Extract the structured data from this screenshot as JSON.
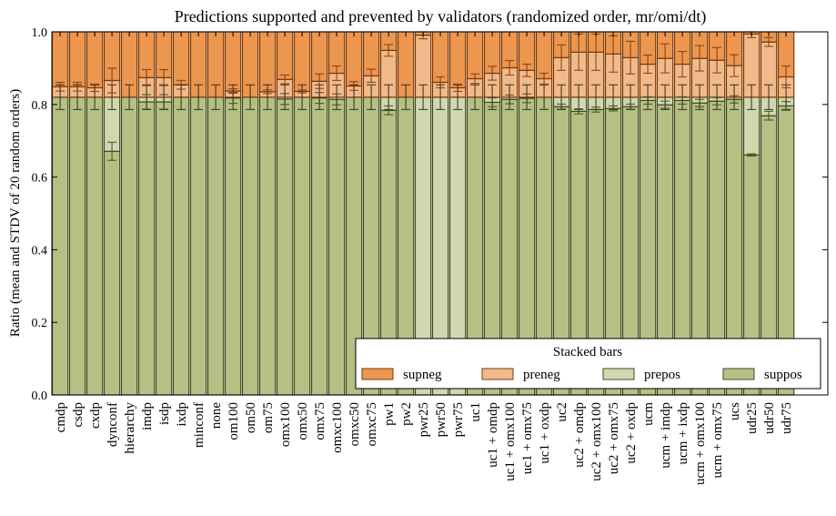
{
  "chart_data": {
    "type": "bar",
    "stacked": true,
    "title": "Predictions supported and prevented by validators (randomized order, mr/omi/dt)",
    "xlabel": "",
    "ylabel": "Ratio (mean and STDV of 20 random orders)",
    "ylim": [
      0,
      1.0
    ],
    "yticks": [
      "0.0",
      "0.2",
      "0.4",
      "0.6",
      "0.8",
      "1.0"
    ],
    "ytick_values": [
      0,
      0.2,
      0.4,
      0.6,
      0.8,
      1.0
    ],
    "grid": false,
    "legend": {
      "title": "Stacked bars",
      "placement": "lower-right",
      "entries": [
        "supneg",
        "preneg",
        "prepos",
        "suppos"
      ]
    },
    "colors": {
      "supneg": "#ec9650",
      "preneg": "#f2b98a",
      "prepos": "#d0d8b0",
      "suppos": "#b4c084",
      "edge_neg": "#7a3a08",
      "edge_pos": "#434a22",
      "err_neg": "#7a3a08",
      "err_pos": "#3c4a20"
    },
    "categories": [
      "cmdp",
      "csdp",
      "cxdp",
      "dynconf",
      "hierarchy",
      "imdp",
      "isdp",
      "ixdp",
      "minconf",
      "none",
      "om100",
      "om50",
      "om75",
      "omx100",
      "omx50",
      "omx75",
      "omxc100",
      "omxc50",
      "omxc75",
      "pw1",
      "pw2",
      "pwr25",
      "pwr50",
      "pwr75",
      "uc1",
      "uc1 + omdp",
      "uc1 + omx100",
      "uc1 + omx75",
      "uc1 + oxdp",
      "uc2",
      "uc2 + omdp",
      "uc2 + omx100",
      "uc2 + omx75",
      "uc2 + oxdp",
      "ucm",
      "ucm + imdp",
      "ucm + ixdp",
      "ucm + omx100",
      "ucm + omx75",
      "ucs",
      "udr25",
      "udr50",
      "udr75"
    ],
    "series": [
      {
        "name": "suppos",
        "values": [
          0.82,
          0.82,
          0.82,
          0.671,
          0.82,
          0.807,
          0.807,
          0.82,
          0.82,
          0.82,
          0.818,
          0.82,
          0.82,
          0.815,
          0.82,
          0.818,
          0.814,
          0.82,
          0.82,
          0.784,
          0.82,
          0,
          0,
          0,
          0.82,
          0.806,
          0.814,
          0.817,
          0.82,
          0.794,
          0.781,
          0.786,
          0.789,
          0.794,
          0.811,
          0.799,
          0.811,
          0.804,
          0.809,
          0.814,
          0.661,
          0.769,
          0.796
        ]
      },
      {
        "name": "prepos",
        "values": [
          0,
          0,
          0,
          0.149,
          0,
          0.013,
          0.013,
          0,
          0,
          0,
          0.002,
          0,
          0,
          0.005,
          0,
          0.002,
          0.006,
          0,
          0,
          0.036,
          0,
          0.82,
          0.82,
          0.82,
          0,
          0.014,
          0.006,
          0.003,
          0,
          0.026,
          0.039,
          0.034,
          0.031,
          0.026,
          0.009,
          0.021,
          0.009,
          0.016,
          0.011,
          0.006,
          0.159,
          0.051,
          0.024
        ]
      },
      {
        "name": "preneg",
        "values": [
          0.029,
          0.029,
          0.026,
          0.046,
          0,
          0.054,
          0.054,
          0.034,
          0,
          0,
          0.017,
          0,
          0.015,
          0.049,
          0.016,
          0.044,
          0.066,
          0.031,
          0.059,
          0.129,
          0,
          0.171,
          0.041,
          0.026,
          0.051,
          0.066,
          0.081,
          0.074,
          0.051,
          0.109,
          0.124,
          0.124,
          0.119,
          0.109,
          0.091,
          0.107,
          0.091,
          0.107,
          0.102,
          0.087,
          0.174,
          0.152,
          0.056
        ]
      },
      {
        "name": "supneg",
        "values": [
          0.151,
          0.151,
          0.154,
          0.134,
          0.18,
          0.126,
          0.126,
          0.146,
          0.18,
          0.18,
          0.163,
          0.18,
          0.165,
          0.131,
          0.164,
          0.136,
          0.114,
          0.149,
          0.121,
          0.051,
          0.18,
          0.009,
          0.139,
          0.154,
          0.129,
          0.114,
          0.099,
          0.106,
          0.129,
          0.071,
          0.056,
          0.056,
          0.061,
          0.071,
          0.089,
          0.073,
          0.089,
          0.073,
          0.078,
          0.093,
          0.006,
          0.028,
          0.124
        ]
      }
    ],
    "stdv": {
      "suppos": [
        0.034,
        0.034,
        0.034,
        0.025,
        0.034,
        0.02,
        0.02,
        0.034,
        0.034,
        0.034,
        0.015,
        0.034,
        0.034,
        0.015,
        0.034,
        0.015,
        0.015,
        0.034,
        0.034,
        0.012,
        0.034,
        0,
        0,
        0,
        0.034,
        0.012,
        0.012,
        0.012,
        0.034,
        0.007,
        0.007,
        0.007,
        0.007,
        0.007,
        0.01,
        0.01,
        0.01,
        0.01,
        0.01,
        0.01,
        0.003,
        0.012,
        0.012
      ],
      "positive_total": [
        0.034,
        0.034,
        0.034,
        0.034,
        0.034,
        0.034,
        0.034,
        0.034,
        0.034,
        0.034,
        0.034,
        0.034,
        0.034,
        0.034,
        0.034,
        0.034,
        0.034,
        0.034,
        0.034,
        0.034,
        0.034,
        0.034,
        0.034,
        0.034,
        0.034,
        0.034,
        0.034,
        0.034,
        0.034,
        0.034,
        0.034,
        0.034,
        0.034,
        0.034,
        0.034,
        0.034,
        0.034,
        0.034,
        0.034,
        0.034,
        0.034,
        0.034,
        0.034
      ],
      "negative_boundary": [
        0.012,
        0.012,
        0.01,
        0.034,
        0,
        0.022,
        0.022,
        0.012,
        0,
        0,
        0.006,
        0,
        0.005,
        0.012,
        0.004,
        0.02,
        0.02,
        0.012,
        0.018,
        0.016,
        0,
        0.01,
        0.015,
        0.01,
        0.013,
        0.019,
        0.02,
        0.017,
        0.015,
        0.035,
        0.05,
        0.05,
        0.05,
        0.045,
        0.025,
        0.04,
        0.035,
        0.035,
        0.035,
        0.03,
        0.01,
        0.012,
        0.03
      ]
    }
  }
}
